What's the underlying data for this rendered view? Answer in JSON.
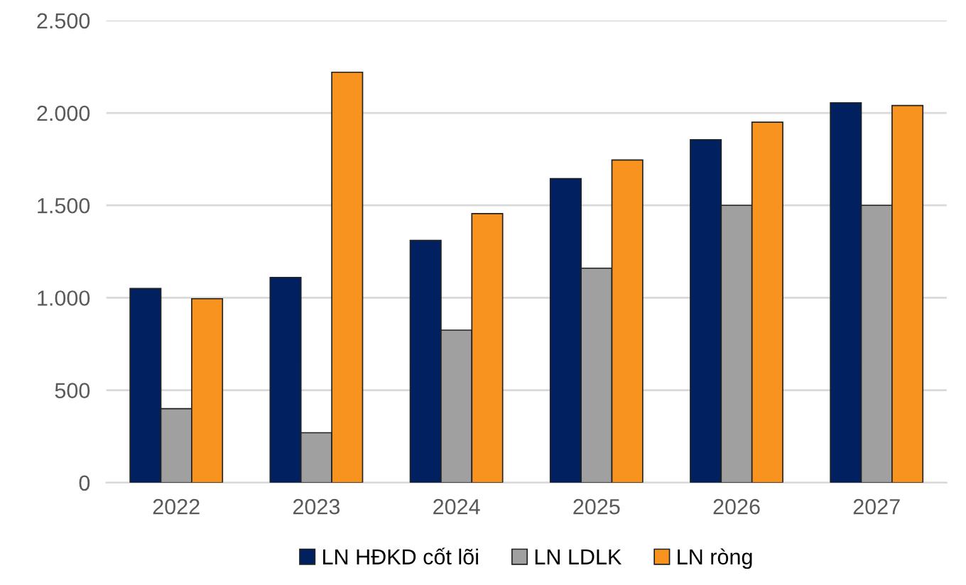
{
  "chart_data": {
    "type": "bar",
    "categories": [
      "2022",
      "2023",
      "2024",
      "2025",
      "2026",
      "2027"
    ],
    "series": [
      {
        "name": "LN HĐKD cốt lõi",
        "color": "#002060",
        "values": [
          1050,
          1110,
          1310,
          1645,
          1855,
          2055
        ]
      },
      {
        "name": "LN LDLK",
        "color": "#a0a0a0",
        "values": [
          400,
          270,
          825,
          1160,
          1500,
          1500
        ]
      },
      {
        "name": "LN ròng",
        "color": "#f7931e",
        "values": [
          995,
          2220,
          1455,
          1745,
          1950,
          2040
        ]
      }
    ],
    "ylim": [
      0,
      2500
    ],
    "yticks": [
      {
        "value": 0,
        "label": "0"
      },
      {
        "value": 500,
        "label": "500"
      },
      {
        "value": 1000,
        "label": "1.000"
      },
      {
        "value": 1500,
        "label": "1.500"
      },
      {
        "value": 2000,
        "label": "2.000"
      },
      {
        "value": 2500,
        "label": "2.500"
      }
    ],
    "grid": "y",
    "legend": "bottom"
  }
}
